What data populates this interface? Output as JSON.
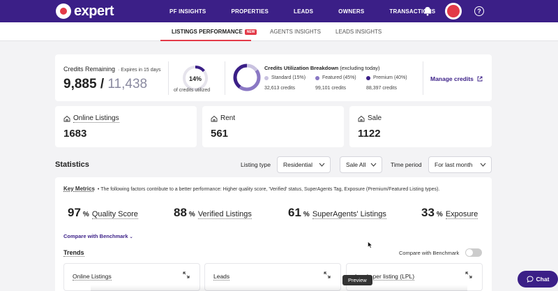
{
  "brand": {
    "name": "expert",
    "accent": "#3b1f87",
    "red": "#e33a48"
  },
  "nav": {
    "items": [
      "PF INSIGHTS",
      "PROPERTIES",
      "LEADS",
      "OWNERS",
      "TRANSACTIONS"
    ]
  },
  "tabs": {
    "listings": "LISTINGS PERFORMANCE",
    "listings_badge": "NEW",
    "agents": "AGENTS INSIGHTS",
    "leads": "LEADS INSIGHTS"
  },
  "credits": {
    "label": "Credits Remaining",
    "expires": "· Expires in 15 days",
    "remaining": "9,885",
    "separator": " / ",
    "total": "11,438",
    "utilized_pct": "14%",
    "utilized_fraction": 0.14,
    "utilized_caption": "of credits utilized",
    "breakdown_title": "Credits Utilization Breakdown",
    "breakdown_note": "(excluding today)",
    "standard_label": "Standard (15%)",
    "standard_credits": "32,613 credits",
    "standard_color": "#c9c2e0",
    "featured_label": "Featured (45%)",
    "featured_credits": "99,101 credits",
    "featured_color": "#8a78c4",
    "premium_label": "Premium (40%)",
    "premium_credits": "88,397 credits",
    "premium_color": "#3b1f87",
    "manage": "Manage credits"
  },
  "listings": {
    "online_label": "Online Listings",
    "online_value": "1683",
    "rent_label": "Rent",
    "rent_value": "561",
    "sale_label": "Sale",
    "sale_value": "1122"
  },
  "statistics": {
    "title": "Statistics",
    "listing_type_label": "Listing type",
    "listing_type_value": "Residential",
    "sale_value": "Sale All",
    "time_period_label": "Time period",
    "time_period_value": "For last month"
  },
  "metrics": {
    "title": "Key Metrics",
    "description": "• The following factors contribute to a better performance: Higher quality score, 'Verified' status, SuperAgents Tag, Exposure (Premium/Featured Listing types).",
    "quality_value": "97",
    "quality_label": "Quality Score",
    "verified_value": "88",
    "verified_label": "Verified Listings",
    "superagents_value": "61",
    "superagents_label": "SuperAgents' Listings",
    "exposure_value": "33",
    "exposure_label": "Exposure",
    "pct": "%",
    "compare_link": "Compare with Benchmark",
    "trends": "Trends",
    "compare_toggle": "Compare with Benchmark",
    "card1": "Online Listings",
    "card2": "Leads",
    "card3": "Leads per listing (LPL)"
  },
  "tooltip": "Preview",
  "chat": "Chat"
}
